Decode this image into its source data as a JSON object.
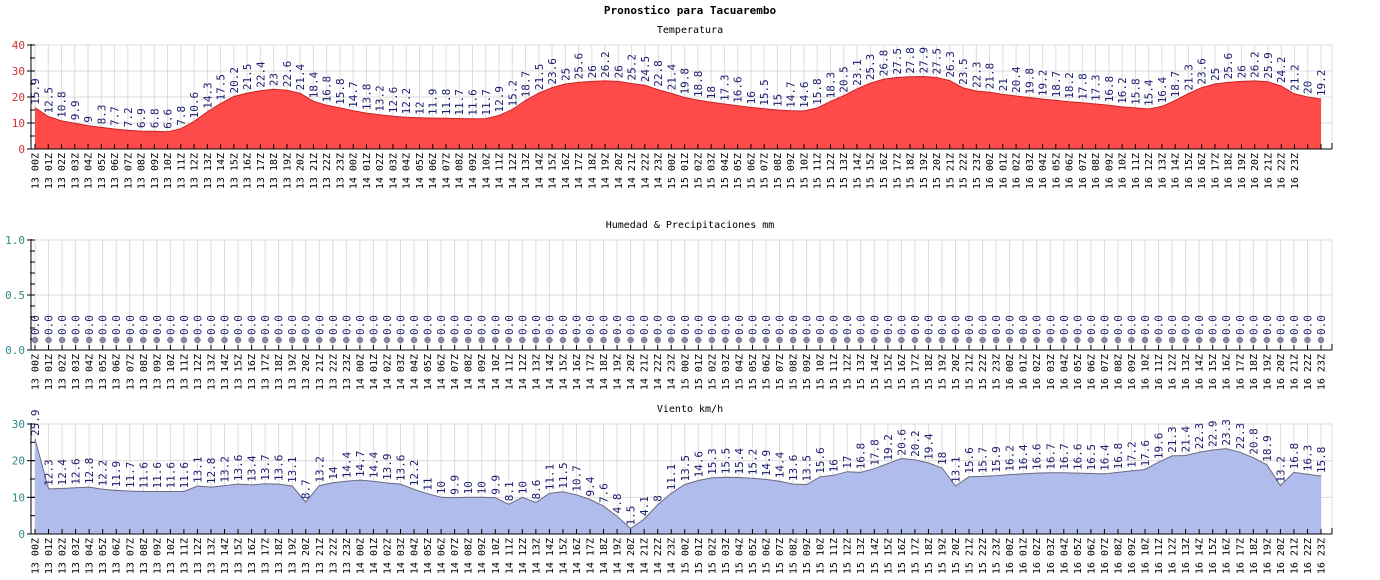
{
  "title": "Pronostico para Tacuarembo",
  "x_labels": [
    "13 00Z",
    "13 01Z",
    "13 02Z",
    "13 03Z",
    "13 04Z",
    "13 05Z",
    "13 06Z",
    "13 07Z",
    "13 08Z",
    "13 09Z",
    "13 10Z",
    "13 11Z",
    "13 12Z",
    "13 13Z",
    "13 14Z",
    "13 15Z",
    "13 16Z",
    "13 17Z",
    "13 18Z",
    "13 19Z",
    "13 20Z",
    "13 21Z",
    "13 22Z",
    "13 23Z",
    "14 00Z",
    "14 01Z",
    "14 02Z",
    "14 03Z",
    "14 04Z",
    "14 05Z",
    "14 06Z",
    "14 07Z",
    "14 08Z",
    "14 09Z",
    "14 10Z",
    "14 11Z",
    "14 12Z",
    "14 13Z",
    "14 14Z",
    "14 15Z",
    "14 16Z",
    "14 17Z",
    "14 18Z",
    "14 19Z",
    "14 20Z",
    "14 21Z",
    "14 22Z",
    "14 23Z",
    "15 00Z",
    "15 01Z",
    "15 02Z",
    "15 03Z",
    "15 04Z",
    "15 05Z",
    "15 06Z",
    "15 07Z",
    "15 08Z",
    "15 09Z",
    "15 10Z",
    "15 11Z",
    "15 12Z",
    "15 13Z",
    "15 14Z",
    "15 15Z",
    "15 16Z",
    "15 17Z",
    "15 18Z",
    "15 19Z",
    "15 20Z",
    "15 21Z",
    "15 22Z",
    "15 23Z",
    "16 00Z",
    "16 01Z",
    "16 02Z",
    "16 03Z",
    "16 04Z",
    "16 05Z",
    "16 06Z",
    "16 07Z",
    "16 08Z",
    "16 09Z",
    "16 10Z",
    "16 11Z",
    "16 12Z",
    "16 13Z",
    "16 14Z",
    "16 15Z",
    "16 16Z",
    "16 17Z",
    "16 18Z",
    "16 19Z",
    "16 20Z",
    "16 21Z",
    "16 22Z",
    "16 23Z"
  ],
  "chart_data": [
    {
      "type": "area",
      "title": "Temperatura",
      "ylim": [
        0,
        40
      ],
      "yticks": [
        0,
        10,
        20,
        30,
        40
      ],
      "grid": true,
      "fill_color": "#ff4a4a",
      "line_color": "#cc2222",
      "tick_color": "#cc3333",
      "values": [
        15.9,
        12.5,
        10.8,
        9.9,
        9.0,
        8.3,
        7.7,
        7.2,
        6.9,
        6.8,
        6.6,
        7.8,
        10.6,
        14.3,
        17.5,
        20.2,
        21.5,
        22.4,
        23.0,
        22.6,
        21.4,
        18.4,
        16.8,
        15.8,
        14.7,
        13.8,
        13.2,
        12.6,
        12.2,
        12.0,
        11.9,
        11.8,
        11.7,
        11.6,
        11.7,
        12.9,
        15.2,
        18.7,
        21.5,
        23.6,
        25.0,
        25.6,
        26.0,
        26.2,
        26.0,
        25.2,
        24.5,
        22.8,
        21.4,
        19.8,
        18.8,
        18.0,
        17.3,
        16.6,
        16.0,
        15.5,
        15.0,
        14.7,
        14.6,
        15.8,
        18.3,
        20.5,
        23.1,
        25.3,
        26.8,
        27.5,
        27.8,
        27.9,
        27.5,
        26.3,
        23.5,
        22.3,
        21.8,
        21.0,
        20.4,
        19.8,
        19.2,
        18.7,
        18.2,
        17.8,
        17.3,
        16.8,
        16.2,
        15.8,
        15.4,
        16.4,
        18.7,
        21.3,
        23.6,
        25.0,
        25.6,
        26.0,
        26.2,
        25.9,
        24.2,
        21.2,
        20.0,
        19.2
      ]
    },
    {
      "type": "line",
      "title": "Humedad & Precipitaciones mm",
      "ylim": [
        0,
        1.0
      ],
      "yticks": [
        0.0,
        0.5,
        1.0
      ],
      "grid": true,
      "marker_color": "#8a8aa8",
      "tick_color": "#2e8b8b",
      "values": [
        0,
        0,
        0,
        0,
        0,
        0,
        0,
        0,
        0,
        0,
        0,
        0,
        0,
        0,
        0,
        0,
        0,
        0,
        0,
        0,
        0,
        0,
        0,
        0,
        0,
        0,
        0,
        0,
        0,
        0,
        0,
        0,
        0,
        0,
        0,
        0,
        0,
        0,
        0,
        0,
        0,
        0,
        0,
        0,
        0,
        0,
        0,
        0,
        0,
        0,
        0,
        0,
        0,
        0,
        0,
        0,
        0,
        0,
        0,
        0,
        0,
        0,
        0,
        0,
        0,
        0,
        0,
        0,
        0,
        0,
        0,
        0,
        0,
        0,
        0,
        0,
        0,
        0,
        0,
        0,
        0,
        0,
        0,
        0,
        0,
        0,
        0,
        0,
        0,
        0,
        0,
        0,
        0,
        0,
        0,
        0
      ]
    },
    {
      "type": "area",
      "title": "Viento km/h",
      "ylim": [
        0,
        30
      ],
      "yticks": [
        0,
        10,
        20,
        30
      ],
      "grid": true,
      "fill_color": "#b0bcec",
      "line_color": "#6a6a80",
      "tick_color": "#2e8b8b",
      "values": [
        25.9,
        12.3,
        12.4,
        12.6,
        12.8,
        12.2,
        11.9,
        11.7,
        11.6,
        11.6,
        11.6,
        11.6,
        13.1,
        12.8,
        13.2,
        13.6,
        13.4,
        13.7,
        13.6,
        13.1,
        8.7,
        13.2,
        14.0,
        14.4,
        14.7,
        14.4,
        13.9,
        13.6,
        12.2,
        11.0,
        10.0,
        9.9,
        10.0,
        10.0,
        9.9,
        8.1,
        10.0,
        8.6,
        11.1,
        11.5,
        10.7,
        9.4,
        7.6,
        4.8,
        1.5,
        4.1,
        8.0,
        11.1,
        13.5,
        14.6,
        15.3,
        15.5,
        15.4,
        15.2,
        14.9,
        14.4,
        13.6,
        13.5,
        15.6,
        16.0,
        17.0,
        16.8,
        17.8,
        19.2,
        20.6,
        20.2,
        19.4,
        18.0,
        13.1,
        15.6,
        15.7,
        15.9,
        16.2,
        16.4,
        16.6,
        16.7,
        16.7,
        16.6,
        16.5,
        16.4,
        16.8,
        17.2,
        17.6,
        19.6,
        21.3,
        21.4,
        22.3,
        22.9,
        23.3,
        22.3,
        20.8,
        18.9,
        13.2,
        16.8,
        16.3,
        15.8
      ]
    }
  ]
}
